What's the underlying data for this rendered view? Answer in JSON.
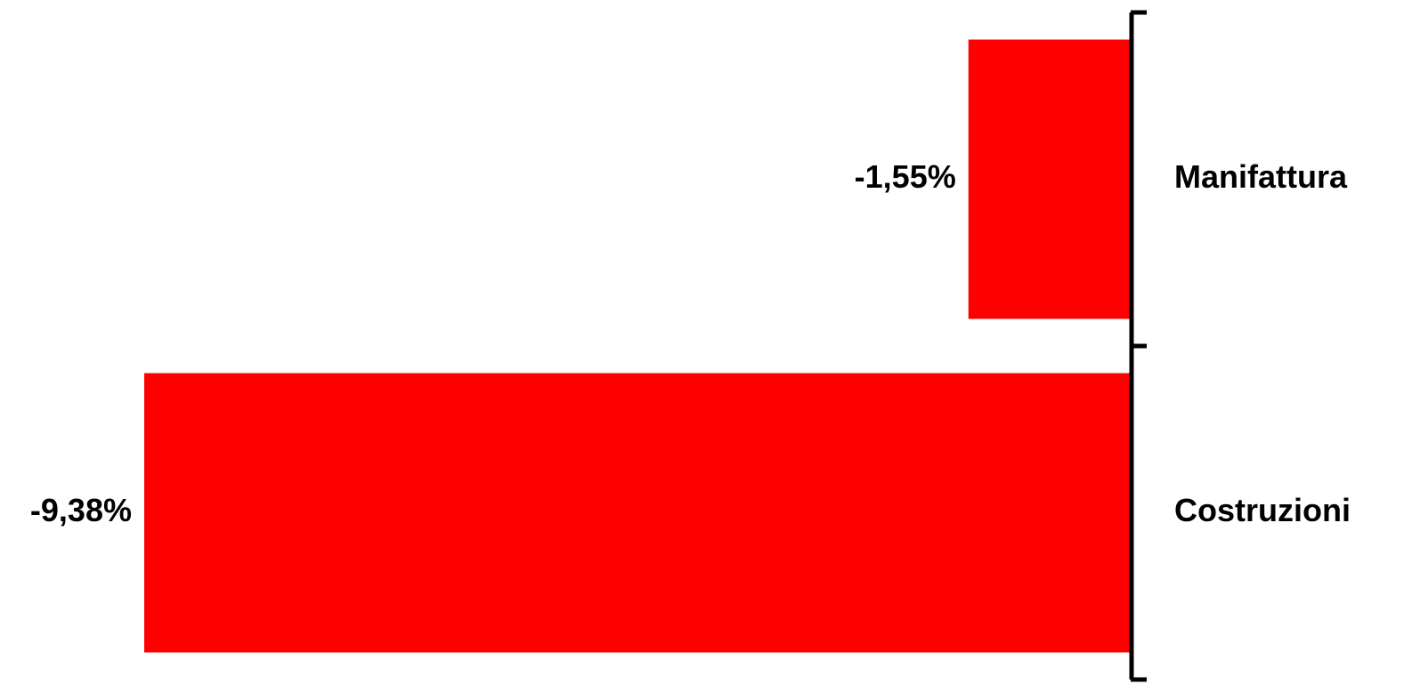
{
  "chart_data": {
    "type": "bar",
    "orientation": "horizontal",
    "categories": [
      "Manifattura",
      "Costruzioni"
    ],
    "values": [
      -1.55,
      -9.38
    ],
    "data_labels": [
      "-1,55%",
      "-9,38%"
    ],
    "xlim": [
      -10,
      0
    ],
    "grid": false,
    "legend": "none",
    "colors": {
      "bar": "#ff0000",
      "axis": "#000000",
      "text": "#000000"
    }
  }
}
